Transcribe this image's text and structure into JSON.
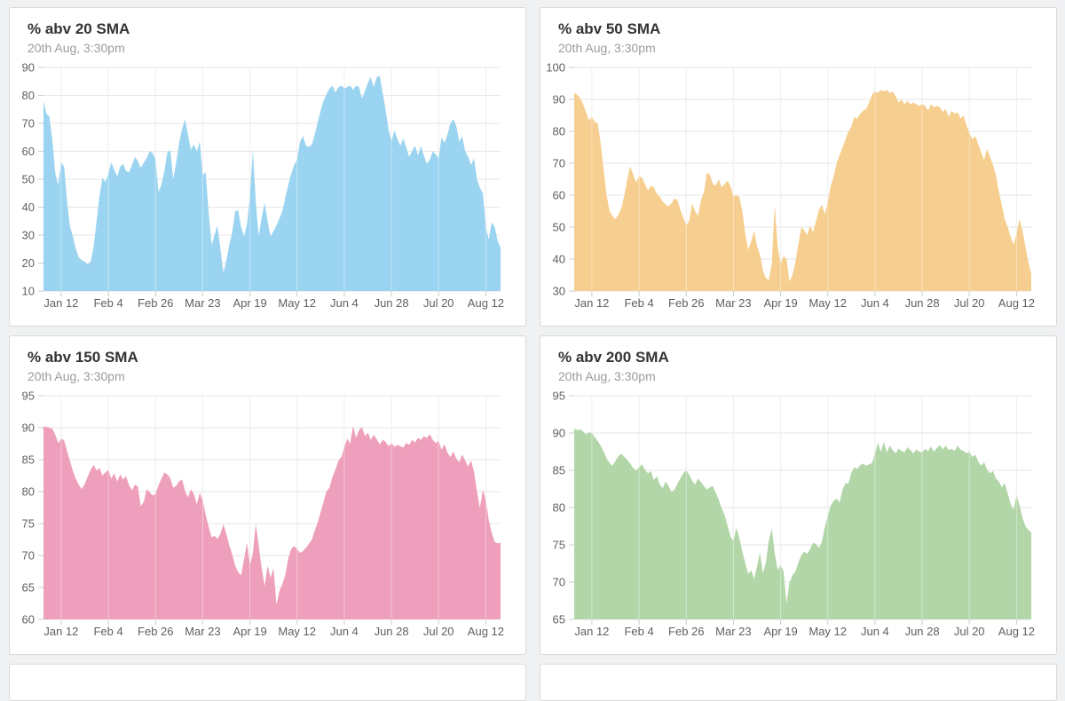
{
  "page": {
    "background": "#f0f1f2"
  },
  "chart_data": [
    {
      "type": "area",
      "title": "% abv 20 SMA",
      "subtitle": "20th Aug, 3:30pm",
      "color": "#9bd4f0",
      "ylim": [
        10,
        90
      ],
      "yticks": [
        90,
        80,
        70,
        60,
        50,
        40,
        30,
        20,
        10
      ],
      "grid": true,
      "legend": "none",
      "x_tick_labels": [
        "Jan 12",
        "Feb 4",
        "Feb 26",
        "Mar 23",
        "Apr 19",
        "May 12",
        "Jun 4",
        "Jun 28",
        "Jul 20",
        "Aug 12"
      ],
      "x_tick_days": [
        6,
        22,
        38,
        54,
        70,
        86,
        102,
        118,
        134,
        150
      ],
      "values": [
        78,
        73.5,
        72.5,
        64,
        52,
        48,
        56,
        54.5,
        42,
        33,
        29.5,
        25,
        22,
        21,
        20.5,
        19.5,
        20.5,
        26,
        35,
        44,
        50.5,
        49,
        52,
        56,
        53.5,
        51,
        54.5,
        55.5,
        53,
        52.5,
        55,
        58,
        56.5,
        54,
        56,
        57.5,
        60,
        59.5,
        57,
        45.5,
        48,
        53,
        59.5,
        60.5,
        50,
        56,
        63,
        68,
        71.5,
        66,
        60.5,
        62.5,
        60,
        63.5,
        51.5,
        52.5,
        38,
        26.5,
        30,
        33.5,
        25,
        16.5,
        21,
        26.5,
        31,
        38.5,
        39,
        33,
        29.5,
        34,
        44,
        60.5,
        42,
        29.5,
        36.5,
        41.5,
        35,
        29.5,
        31.5,
        33.5,
        36,
        38.5,
        43.5,
        48,
        52,
        55,
        57,
        63.5,
        65.5,
        62,
        61.5,
        62.5,
        66,
        70.5,
        74.5,
        78,
        80.5,
        82.5,
        83.5,
        81,
        83,
        83.5,
        82.5,
        83,
        83.5,
        82,
        83.5,
        83,
        79,
        81.5,
        84.5,
        86.5,
        83,
        86.5,
        87,
        81,
        75,
        68,
        63.5,
        67.5,
        64.5,
        62,
        64.5,
        61.5,
        58,
        60,
        62,
        58.5,
        62,
        58.5,
        55.5,
        57,
        60,
        59,
        57.5,
        65,
        63,
        66,
        70,
        71.5,
        69,
        63.5,
        65.5,
        60,
        58,
        55,
        57.5,
        50,
        47,
        45,
        33,
        28.5,
        34.5,
        33,
        28,
        25.5
      ]
    },
    {
      "type": "area",
      "title": "% abv 50 SMA",
      "subtitle": "20th Aug, 3:30pm",
      "color": "#f6cf90",
      "ylim": [
        30,
        100
      ],
      "yticks": [
        100,
        90,
        80,
        70,
        60,
        50,
        40,
        30
      ],
      "grid": true,
      "legend": "none",
      "x_tick_labels": [
        "Jan 12",
        "Feb 4",
        "Feb 26",
        "Mar 23",
        "Apr 19",
        "May 12",
        "Jun 4",
        "Jun 28",
        "Jul 20",
        "Aug 12"
      ],
      "x_tick_days": [
        6,
        22,
        38,
        54,
        70,
        86,
        102,
        118,
        134,
        150
      ],
      "values": [
        92,
        91.5,
        90.5,
        88.5,
        86,
        83.5,
        84.5,
        83,
        82.5,
        76,
        68,
        60,
        55,
        53.5,
        52.5,
        54,
        56,
        60,
        65,
        69,
        66.5,
        64,
        66,
        65.5,
        63.5,
        61.5,
        63,
        62.5,
        60.5,
        59.5,
        58,
        57,
        56.5,
        57.5,
        59,
        58.5,
        55.5,
        53,
        50.5,
        52,
        57.5,
        55,
        53.5,
        58.5,
        61,
        67,
        66.5,
        63.5,
        63,
        65,
        62.5,
        63.5,
        64.5,
        63,
        59.5,
        60,
        59.5,
        55,
        48,
        43,
        45.5,
        49,
        44,
        41.5,
        36.5,
        34,
        33.5,
        38.5,
        57,
        44,
        38.5,
        41,
        40,
        33,
        35,
        39,
        44.5,
        50,
        49,
        47.5,
        50.5,
        48.5,
        52,
        55.5,
        57,
        54,
        58,
        63,
        66,
        70,
        72.5,
        75,
        77.5,
        80,
        81.5,
        84.5,
        84,
        85.5,
        86.5,
        87,
        89,
        91.5,
        92.5,
        92,
        93,
        92.5,
        93,
        92,
        92.5,
        91,
        89,
        90,
        88.5,
        89.5,
        88.5,
        89,
        88.5,
        88,
        88.5,
        88,
        86.5,
        88.5,
        87.5,
        88,
        87.5,
        86,
        87,
        84.5,
        86.5,
        85.5,
        86,
        84,
        85,
        82,
        79.5,
        77.5,
        78.5,
        76,
        73.5,
        71,
        74.5,
        72,
        69.5,
        66.5,
        61,
        57,
        52.5,
        50,
        47,
        44.5,
        48,
        52.5,
        49,
        44,
        39,
        35.5
      ]
    },
    {
      "type": "area",
      "title": "% abv 150 SMA",
      "subtitle": "20th Aug, 3:30pm",
      "color": "#ee9fbb",
      "ylim": [
        60,
        95
      ],
      "yticks": [
        95,
        90,
        85,
        80,
        75,
        70,
        65,
        60
      ],
      "grid": true,
      "legend": "none",
      "x_tick_labels": [
        "Jan 12",
        "Feb 4",
        "Feb 26",
        "Mar 23",
        "Apr 19",
        "May 12",
        "Jun 4",
        "Jun 28",
        "Jul 20",
        "Aug 12"
      ],
      "x_tick_days": [
        6,
        22,
        38,
        54,
        70,
        86,
        102,
        118,
        134,
        150
      ],
      "values": [
        90.2,
        90.1,
        90,
        89.8,
        88.9,
        87.6,
        88.3,
        88,
        86.3,
        84.8,
        83.2,
        82,
        81,
        80.4,
        81.2,
        82.3,
        83.4,
        84.2,
        83.3,
        83.7,
        82.5,
        83,
        83.4,
        82,
        82.9,
        81.6,
        82.7,
        81.9,
        82.4,
        81,
        80.2,
        81.1,
        80.8,
        77.7,
        78.4,
        80.4,
        79.9,
        79.4,
        79.6,
        81,
        82,
        83,
        82.7,
        82.1,
        80.6,
        80.9,
        81.6,
        81.9,
        80.1,
        79.1,
        80.4,
        79.6,
        78,
        79.8,
        78.6,
        76.4,
        74.5,
        72.8,
        73.1,
        72.6,
        73.4,
        74.9,
        73.4,
        71.6,
        70.2,
        68.4,
        67.4,
        66.9,
        69.3,
        72,
        68.5,
        70.3,
        75,
        71.5,
        68,
        65.2,
        68.4,
        66.5,
        68,
        62.3,
        64.4,
        65.5,
        67,
        69.5,
        71,
        71.5,
        71,
        70.4,
        70.7,
        71.2,
        71.8,
        72.5,
        73.9,
        75.2,
        76.8,
        78.4,
        80.1,
        80.6,
        82.3,
        83.4,
        84.8,
        85.4,
        86.9,
        88.3,
        87.5,
        90.3,
        88.4,
        89.6,
        90.1,
        88.7,
        89.2,
        88.1,
        88.9,
        88.2,
        87.4,
        88.1,
        87.8,
        87.1,
        87.6,
        87,
        87.3,
        87.1,
        86.9,
        87.6,
        87.3,
        88.1,
        87.7,
        88.4,
        88.1,
        88.7,
        88.4,
        89,
        88.1,
        87.6,
        87.9,
        86.6,
        87.4,
        86.1,
        85.4,
        86.3,
        85.1,
        84.6,
        85.8,
        84.9,
        83.9,
        84.9,
        83.1,
        80.1,
        77.4,
        80.3,
        78.6,
        75.6,
        73.6,
        72.1,
        71.9,
        72
      ]
    },
    {
      "type": "area",
      "title": "% abv 200 SMA",
      "subtitle": "20th Aug, 3:30pm",
      "color": "#b3d6a9",
      "ylim": [
        65,
        95
      ],
      "yticks": [
        95,
        90,
        85,
        80,
        75,
        70,
        65
      ],
      "grid": true,
      "legend": "none",
      "x_tick_labels": [
        "Jan 12",
        "Feb 4",
        "Feb 26",
        "Mar 23",
        "Apr 19",
        "May 12",
        "Jun 4",
        "Jun 28",
        "Jul 20",
        "Aug 12"
      ],
      "x_tick_days": [
        6,
        22,
        38,
        54,
        70,
        86,
        102,
        118,
        134,
        150
      ],
      "values": [
        90.6,
        90.4,
        90.5,
        90.2,
        89.8,
        90.1,
        90,
        89.4,
        88.9,
        88.3,
        87.5,
        86.6,
        86,
        85.6,
        86.3,
        86.9,
        87.2,
        86.8,
        86.4,
        85.9,
        85.3,
        85,
        85.4,
        85.8,
        85.1,
        84.6,
        84.9,
        83.7,
        84.2,
        83.1,
        82.6,
        83.5,
        82.9,
        82.1,
        82.4,
        83.2,
        83.9,
        84.6,
        85,
        84.4,
        83.6,
        83.1,
        83.9,
        83.4,
        82.9,
        82.4,
        82.7,
        82.9,
        82,
        81.1,
        79.9,
        79,
        77.6,
        76.1,
        75.5,
        77.3,
        75.9,
        74.1,
        72.6,
        71.1,
        71.6,
        70.4,
        72.1,
        74,
        71.2,
        72.6,
        75.6,
        77.2,
        73.9,
        71.6,
        72.3,
        71.4,
        67.1,
        69.9,
        70.9,
        71.4,
        72.6,
        73.6,
        74.1,
        73.8,
        74.4,
        75.3,
        75.1,
        74.6,
        75.4,
        77.4,
        78.9,
        80.3,
        80.9,
        81.2,
        80.7,
        82.4,
        83.3,
        83.2,
        84.7,
        85.4,
        85.2,
        85.7,
        85.9,
        85.6,
        85.8,
        86,
        87.2,
        88.7,
        87.5,
        88.8,
        87.4,
        88.3,
        87.7,
        87.3,
        87.9,
        87.6,
        87.4,
        88.1,
        87.7,
        87.3,
        87.8,
        87.5,
        87.4,
        87.9,
        87.6,
        88.2,
        87.5,
        88,
        88.4,
        87.8,
        88.3,
        87.7,
        87.9,
        87.6,
        88.3,
        87.8,
        87.6,
        87.3,
        87.5,
        86.8,
        87.1,
        86.2,
        85.6,
        86.1,
        85.1,
        84.6,
        84.9,
        83.9,
        83.5,
        82.7,
        83.3,
        81.9,
        80.5,
        79.7,
        81.7,
        80.3,
        78.7,
        77.5,
        77,
        76.7
      ]
    }
  ]
}
